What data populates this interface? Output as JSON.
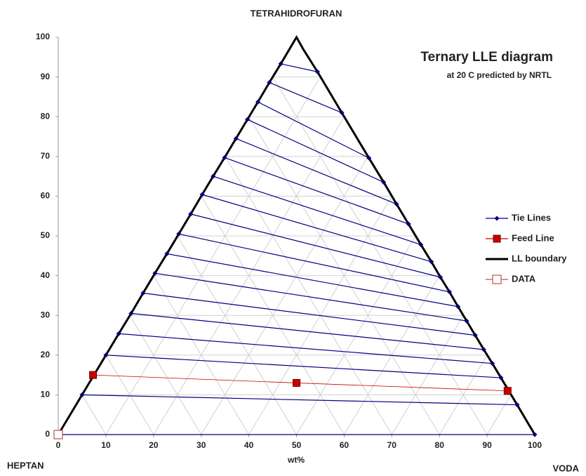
{
  "chart_data": {
    "type": "line",
    "title": "Ternary LLE diagram",
    "subtitle": "at 20 C predicted by NRTL",
    "top_label": "TETRAHIDROFURAN",
    "left_label": "HEPTAN",
    "right_label": "VODA",
    "xlabel": "wt%",
    "xlim": [
      0,
      100
    ],
    "ylim": [
      0,
      100
    ],
    "xticks": [
      0,
      10,
      20,
      30,
      40,
      50,
      60,
      70,
      80,
      90,
      100
    ],
    "yticks": [
      0,
      10,
      20,
      30,
      40,
      50,
      60,
      70,
      80,
      90,
      100
    ],
    "grid": true,
    "legend": "right",
    "series": [
      {
        "name": "Tie Lines",
        "color": "#000080",
        "marker": "diamond",
        "x": [
          0,
          100,
          null,
          5,
          96.3,
          null,
          10,
          92.9,
          null,
          12.7,
          91.1,
          null,
          15.3,
          89.3,
          null,
          17.8,
          87.5,
          null,
          20.3,
          85.7,
          null,
          22.8,
          83.9,
          null,
          25.3,
          82.1,
          null,
          27.8,
          80.2,
          null,
          30.2,
          78.3,
          null,
          32.5,
          76.1,
          null,
          34.9,
          73.5,
          null,
          37.3,
          71,
          null,
          39.7,
          68.3,
          null,
          41.9,
          65.2,
          null,
          44.3,
          59.5,
          null,
          46.7,
          54.4
        ],
        "y": [
          0,
          0,
          null,
          10,
          7.5,
          null,
          20,
          14.3,
          null,
          25.4,
          17.9,
          null,
          30.5,
          21.4,
          null,
          35.6,
          25,
          null,
          40.6,
          28.6,
          null,
          45.5,
          32.2,
          null,
          50.5,
          35.9,
          null,
          55.5,
          39.6,
          null,
          60.4,
          43.5,
          null,
          65,
          47.8,
          null,
          69.7,
          53,
          null,
          74.5,
          58,
          null,
          79.3,
          63.5,
          null,
          83.7,
          69.6,
          null,
          88.6,
          81,
          null,
          93.3,
          91.3
        ]
      },
      {
        "name": "Feed Line",
        "color": "#cc0000",
        "marker": "square",
        "x": [
          7.3,
          50,
          94.3
        ],
        "y": [
          15,
          13,
          11
        ]
      },
      {
        "name": "LL boundary",
        "color": "#000000",
        "marker": "none",
        "x": [
          0,
          5,
          10,
          12.7,
          15.3,
          17.8,
          20.3,
          22.8,
          25.3,
          27.8,
          30.2,
          32.5,
          34.9,
          37.3,
          39.7,
          41.9,
          44.3,
          46.7,
          50,
          51.5,
          54.4,
          59.5,
          65.2,
          68.3,
          71,
          73.5,
          76.1,
          78.3,
          80.2,
          82.1,
          83.9,
          85.7,
          87.5,
          89.3,
          91.1,
          92.9,
          96.3,
          100
        ],
        "y": [
          0,
          10,
          20,
          25.4,
          30.5,
          35.6,
          40.6,
          45.5,
          50.5,
          55.5,
          60.4,
          65,
          69.7,
          74.5,
          79.3,
          83.7,
          88.6,
          93.3,
          100,
          96.8,
          91.3,
          81,
          69.6,
          63.5,
          58,
          53,
          47.8,
          43.5,
          39.6,
          35.9,
          32.2,
          28.6,
          25,
          21.4,
          17.9,
          14.3,
          7.5,
          0
        ]
      },
      {
        "name": "DATA",
        "color": "#c0504d",
        "marker": "hollow-square",
        "x": [
          0
        ],
        "y": [
          0
        ]
      }
    ]
  }
}
